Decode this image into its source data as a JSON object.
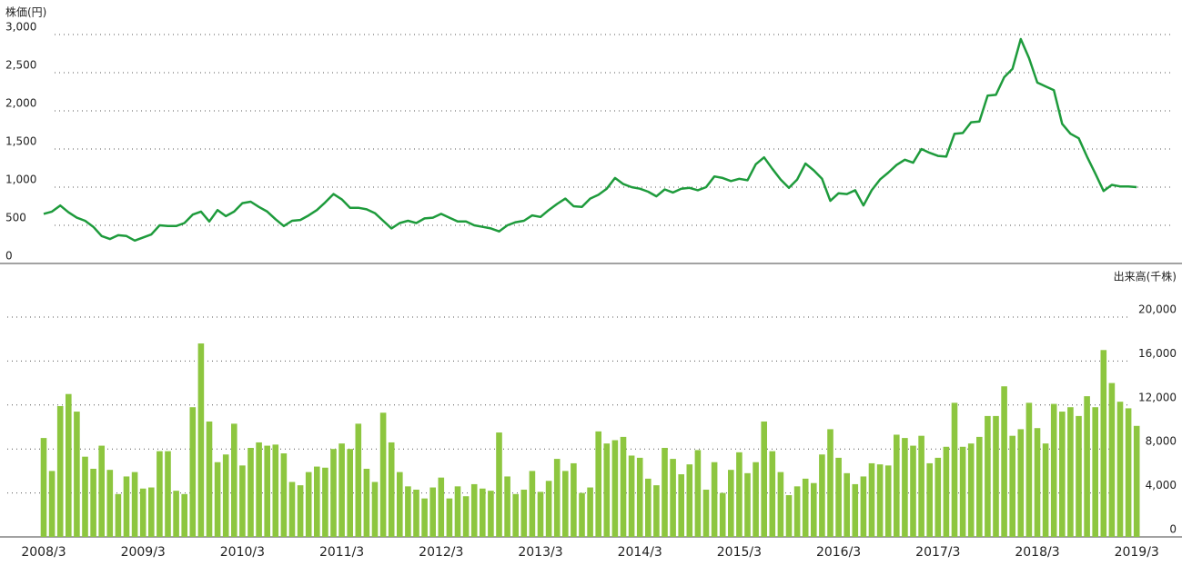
{
  "chart_data": [
    {
      "type": "line",
      "title": "株価(円)",
      "color": "#1e9b3c",
      "ylim": [
        0,
        3000
      ],
      "yticks": [
        0,
        500,
        {
          "value": 1000,
          "label": "1,000"
        },
        {
          "value": 1500,
          "label": "1,500"
        },
        {
          "value": 2000,
          "label": "2,000"
        },
        {
          "value": 2500,
          "label": "2,500"
        },
        {
          "value": 3000,
          "label": "3,000"
        }
      ],
      "grid": true,
      "values": [
        650,
        680,
        760,
        670,
        600,
        560,
        480,
        360,
        320,
        370,
        360,
        300,
        340,
        380,
        500,
        490,
        490,
        530,
        640,
        680,
        550,
        700,
        620,
        680,
        790,
        810,
        740,
        680,
        580,
        490,
        560,
        570,
        630,
        700,
        800,
        910,
        840,
        730,
        730,
        710,
        660,
        560,
        460,
        530,
        560,
        530,
        590,
        600,
        650,
        600,
        550,
        550,
        500,
        480,
        460,
        420,
        500,
        540,
        560,
        630,
        610,
        700,
        780,
        850,
        750,
        740,
        850,
        900,
        980,
        1120,
        1040,
        1000,
        980,
        940,
        880,
        970,
        930,
        980,
        990,
        960,
        1000,
        1140,
        1120,
        1080,
        1110,
        1090,
        1300,
        1390,
        1240,
        1100,
        990,
        1100,
        1310,
        1220,
        1110,
        820,
        920,
        910,
        960,
        760,
        960,
        1100,
        1190,
        1290,
        1360,
        1320,
        1500,
        1450,
        1410,
        1400,
        1700,
        1710,
        1850,
        1860,
        2200,
        2210,
        2440,
        2550,
        2940,
        2690,
        2370,
        2320,
        2270,
        1830,
        1700,
        1640,
        1400,
        1180,
        950,
        1030,
        1010,
        1010,
        1000
      ]
    },
    {
      "type": "bar",
      "title": "出来高(千株)",
      "color": "#8dc63f",
      "ylim": [
        0,
        20000
      ],
      "yticks": [
        0,
        {
          "value": 4000,
          "label": "4,000"
        },
        {
          "value": 8000,
          "label": "8,000"
        },
        {
          "value": 12000,
          "label": "12,000"
        },
        {
          "value": 16000,
          "label": "16,000"
        },
        {
          "value": 20000,
          "label": "20,000"
        }
      ],
      "grid": true,
      "categories": [
        "2008/3",
        null,
        null,
        null,
        null,
        null,
        null,
        null,
        null,
        null,
        null,
        null,
        "2009/3",
        null,
        null,
        null,
        null,
        null,
        null,
        null,
        null,
        null,
        null,
        null,
        "2010/3",
        null,
        null,
        null,
        null,
        null,
        null,
        null,
        null,
        null,
        null,
        null,
        "2011/3",
        null,
        null,
        null,
        null,
        null,
        null,
        null,
        null,
        null,
        null,
        null,
        "2012/3",
        null,
        null,
        null,
        null,
        null,
        null,
        null,
        null,
        null,
        null,
        null,
        "2013/3",
        null,
        null,
        null,
        null,
        null,
        null,
        null,
        null,
        null,
        null,
        null,
        "2014/3",
        null,
        null,
        null,
        null,
        null,
        null,
        null,
        null,
        null,
        null,
        null,
        "2015/3",
        null,
        null,
        null,
        null,
        null,
        null,
        null,
        null,
        null,
        null,
        null,
        "2016/3",
        null,
        null,
        null,
        null,
        null,
        null,
        null,
        null,
        null,
        null,
        null,
        "2017/3",
        null,
        null,
        null,
        null,
        null,
        null,
        null,
        null,
        null,
        null,
        null,
        "2018/3",
        null,
        null,
        null,
        null,
        null,
        null,
        null,
        null,
        null,
        null,
        null,
        "2019/3"
      ],
      "values": [
        9000,
        6000,
        11900,
        13000,
        11400,
        7300,
        6200,
        8300,
        6100,
        3900,
        5500,
        5900,
        4400,
        4500,
        7800,
        7800,
        4200,
        3900,
        11800,
        17600,
        10500,
        6800,
        7500,
        10300,
        6500,
        8100,
        8600,
        8300,
        8400,
        7600,
        5000,
        4700,
        5900,
        6400,
        6300,
        8000,
        8500,
        8000,
        10300,
        6200,
        5000,
        11300,
        8600,
        5900,
        4600,
        4300,
        3500,
        4500,
        5400,
        3500,
        4600,
        3700,
        4800,
        4400,
        4200,
        9500,
        5500,
        3900,
        4300,
        6000,
        4100,
        5100,
        7100,
        6000,
        6700,
        4000,
        4500,
        9600,
        8500,
        8800,
        9100,
        7400,
        7200,
        5300,
        4700,
        8100,
        7100,
        5700,
        6600,
        7900,
        4300,
        6800,
        4000,
        6100,
        7700,
        5800,
        6800,
        10500,
        7800,
        5900,
        3800,
        4600,
        5300,
        4900,
        7500,
        9800,
        7200,
        5800,
        4800,
        5500,
        6700,
        6600,
        6500,
        9300,
        9000,
        8300,
        9200,
        6700,
        7200,
        8200,
        12200,
        8200,
        8500,
        9100,
        11000,
        11000,
        13700,
        9200,
        9800,
        12200,
        9900,
        8500,
        12100,
        11400,
        11800,
        11000,
        12800,
        11800,
        17000,
        14000,
        12300,
        11700,
        10100
      ]
    }
  ]
}
